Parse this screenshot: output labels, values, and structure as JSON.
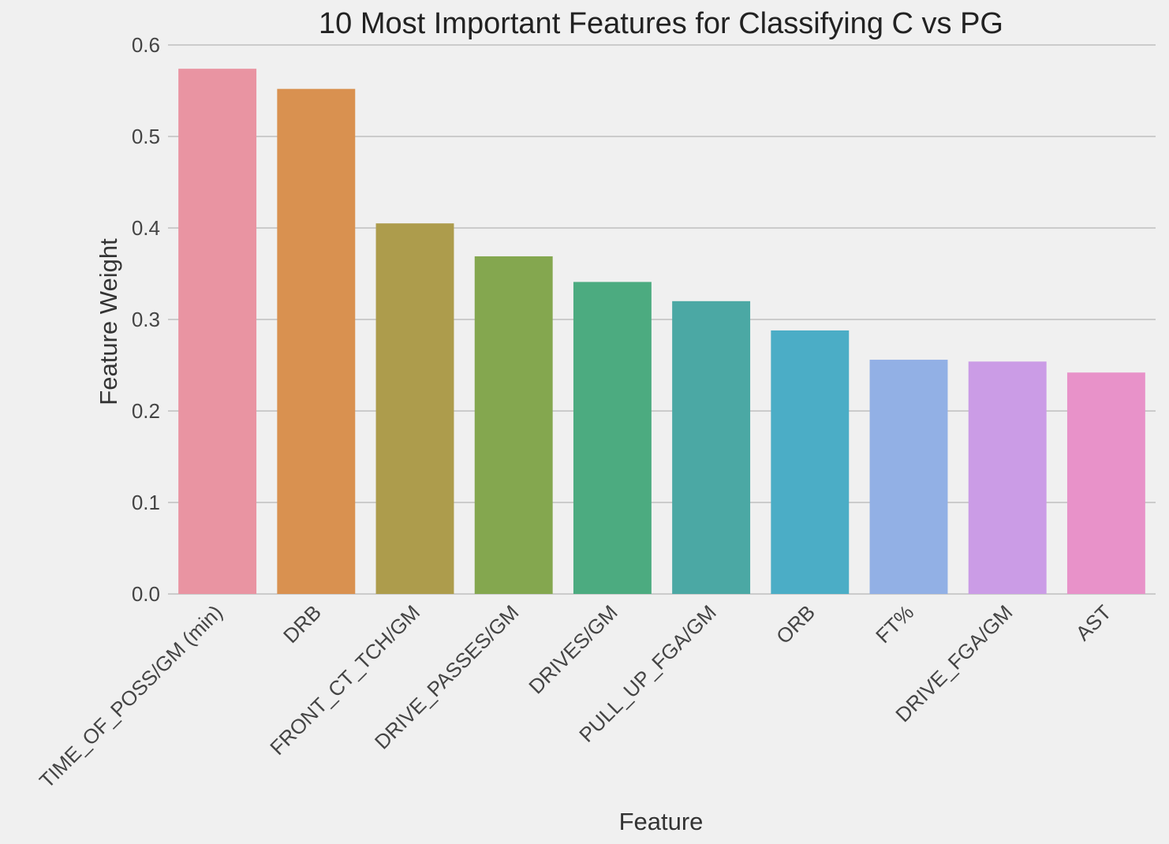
{
  "chart_data": {
    "type": "bar",
    "title": "10 Most Important Features for Classifying C vs PG",
    "xlabel": "Feature",
    "ylabel": "Feature Weight",
    "ylim": [
      0,
      0.6
    ],
    "yticks": [
      "0.0",
      "0.1",
      "0.2",
      "0.3",
      "0.4",
      "0.5",
      "0.6"
    ],
    "grid": true,
    "categories": [
      "TIME_OF_POSS/GM (min)",
      "DRB",
      "FRONT_CT_TCH/GM",
      "DRIVE_PASSES/GM",
      "DRIVES/GM",
      "PULL_UP_FGA/GM",
      "ORB",
      "FT%",
      "DRIVE_FGA/GM",
      "AST"
    ],
    "values": [
      0.574,
      0.552,
      0.405,
      0.369,
      0.341,
      0.32,
      0.288,
      0.256,
      0.254,
      0.242
    ],
    "colors": [
      "#e994a2",
      "#d99150",
      "#ad9c4c",
      "#84a74f",
      "#4cab80",
      "#4ba8a4",
      "#4badc6",
      "#92b0e5",
      "#cb9ce6",
      "#e892c9"
    ]
  }
}
